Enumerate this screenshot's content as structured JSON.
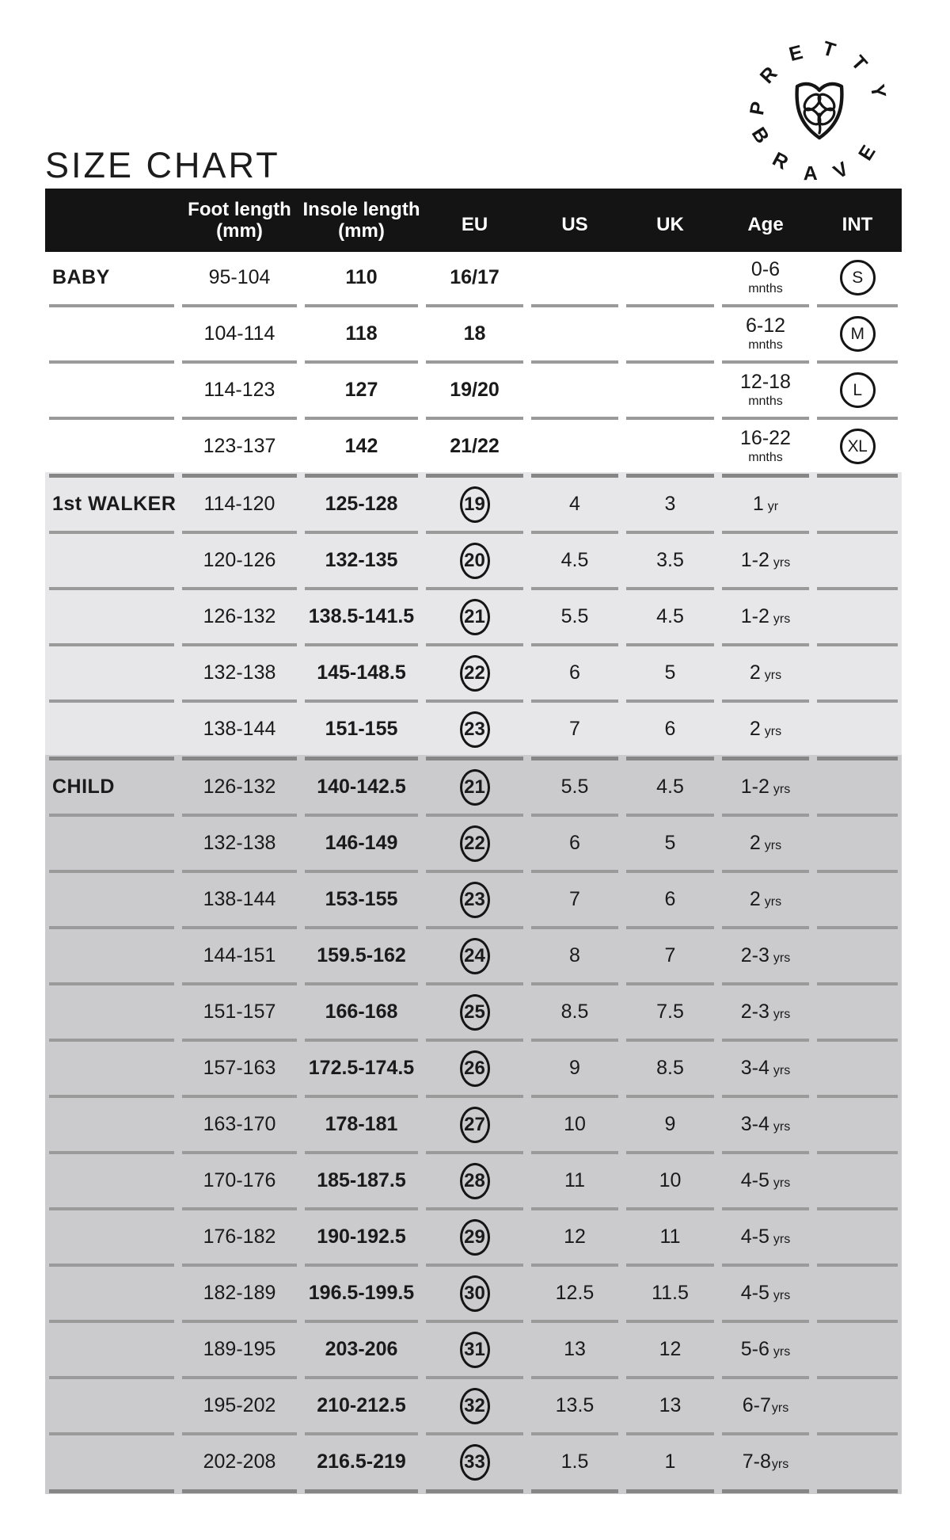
{
  "page": {
    "title": "SIZE CHART"
  },
  "logo": {
    "brand": "Pretty Brave",
    "top_text": "PRETTY",
    "bottom_text": "BRAVE"
  },
  "colors": {
    "header_bg": "#141414",
    "text": "#1a1a1a",
    "baby_bg": "#ffffff",
    "walker_bg": "#e7e7e9",
    "child_bg": "#cbcbcd",
    "row_divider": "#9a9a9a",
    "section_divider": "#868686"
  },
  "table": {
    "headers": [
      {
        "key": "group",
        "label": ""
      },
      {
        "key": "foot",
        "line1": "Foot length",
        "line2": "(mm)"
      },
      {
        "key": "insole",
        "line1": "Insole length",
        "line2": "(mm)"
      },
      {
        "key": "eu",
        "label": "EU"
      },
      {
        "key": "us",
        "label": "US"
      },
      {
        "key": "uk",
        "label": "UK"
      },
      {
        "key": "age",
        "label": "Age"
      },
      {
        "key": "int",
        "label": "INT"
      }
    ],
    "sections": [
      {
        "name": "baby",
        "bg": "#ffffff",
        "eu_circled": false,
        "rows": [
          {
            "label": "BABY",
            "foot": "95-104",
            "insole": "110",
            "eu": "16/17",
            "us": "",
            "uk": "",
            "age": {
              "value": "0-6",
              "unit": "mnths",
              "stacked": true
            },
            "int": "S"
          },
          {
            "foot": "104-114",
            "insole": "118",
            "eu": "18",
            "us": "",
            "uk": "",
            "age": {
              "value": "6-12",
              "unit": "mnths",
              "stacked": true
            },
            "int": "M"
          },
          {
            "foot": "114-123",
            "insole": "127",
            "eu": "19/20",
            "us": "",
            "uk": "",
            "age": {
              "value": "12-18",
              "unit": "mnths",
              "stacked": true
            },
            "int": "L"
          },
          {
            "foot": "123-137",
            "insole": "142",
            "eu": "21/22",
            "us": "",
            "uk": "",
            "age": {
              "value": "16-22",
              "unit": "mnths",
              "stacked": true
            },
            "int": "XL"
          }
        ]
      },
      {
        "name": "first-walker",
        "bg": "#e7e7e9",
        "eu_circled": true,
        "rows": [
          {
            "label": "1st WALKER",
            "foot": "114-120",
            "insole": "125-128",
            "eu": "19",
            "us": "4",
            "uk": "3",
            "age": {
              "value": "1",
              "unit": "yr"
            }
          },
          {
            "foot": "120-126",
            "insole": "132-135",
            "eu": "20",
            "us": "4.5",
            "uk": "3.5",
            "age": {
              "value": "1-2",
              "unit": "yrs"
            }
          },
          {
            "foot": "126-132",
            "insole": "138.5-141.5",
            "eu": "21",
            "us": "5.5",
            "uk": "4.5",
            "age": {
              "value": "1-2",
              "unit": "yrs"
            }
          },
          {
            "foot": "132-138",
            "insole": "145-148.5",
            "eu": "22",
            "us": "6",
            "uk": "5",
            "age": {
              "value": "2",
              "unit": "yrs"
            }
          },
          {
            "foot": "138-144",
            "insole": "151-155",
            "eu": "23",
            "us": "7",
            "uk": "6",
            "age": {
              "value": "2",
              "unit": "yrs"
            }
          }
        ]
      },
      {
        "name": "child",
        "bg": "#cbcbcd",
        "eu_circled": true,
        "rows": [
          {
            "label": "CHILD",
            "foot": "126-132",
            "insole": "140-142.5",
            "eu": "21",
            "us": "5.5",
            "uk": "4.5",
            "age": {
              "value": "1-2",
              "unit": "yrs"
            }
          },
          {
            "foot": "132-138",
            "insole": "146-149",
            "eu": "22",
            "us": "6",
            "uk": "5",
            "age": {
              "value": "2",
              "unit": "yrs"
            }
          },
          {
            "foot": "138-144",
            "insole": "153-155",
            "eu": "23",
            "us": "7",
            "uk": "6",
            "age": {
              "value": "2",
              "unit": "yrs"
            }
          },
          {
            "foot": "144-151",
            "insole": "159.5-162",
            "eu": "24",
            "us": "8",
            "uk": "7",
            "age": {
              "value": "2-3",
              "unit": "yrs"
            }
          },
          {
            "foot": "151-157",
            "insole": "166-168",
            "eu": "25",
            "us": "8.5",
            "uk": "7.5",
            "age": {
              "value": "2-3",
              "unit": "yrs"
            }
          },
          {
            "foot": "157-163",
            "insole": "172.5-174.5",
            "eu": "26",
            "us": "9",
            "uk": "8.5",
            "age": {
              "value": "3-4",
              "unit": "yrs"
            }
          },
          {
            "foot": "163-170",
            "insole": "178-181",
            "eu": "27",
            "us": "10",
            "uk": "9",
            "age": {
              "value": "3-4",
              "unit": "yrs"
            }
          },
          {
            "foot": "170-176",
            "insole": "185-187.5",
            "eu": "28",
            "us": "11",
            "uk": "10",
            "age": {
              "value": "4-5",
              "unit": "yrs"
            }
          },
          {
            "foot": "176-182",
            "insole": "190-192.5",
            "eu": "29",
            "us": "12",
            "uk": "11",
            "age": {
              "value": "4-5",
              "unit": "yrs"
            }
          },
          {
            "foot": "182-189",
            "insole": "196.5-199.5",
            "eu": "30",
            "us": "12.5",
            "uk": "11.5",
            "age": {
              "value": "4-5",
              "unit": "yrs"
            }
          },
          {
            "foot": "189-195",
            "insole": "203-206",
            "eu": "31",
            "us": "13",
            "uk": "12",
            "age": {
              "value": "5-6",
              "unit": "yrs"
            }
          },
          {
            "foot": "195-202",
            "insole": "210-212.5",
            "eu": "32",
            "us": "13.5",
            "uk": "13",
            "age": {
              "value": "6-7",
              "unit": "yrs",
              "tight": true
            }
          },
          {
            "foot": "202-208",
            "insole": "216.5-219",
            "eu": "33",
            "us": "1.5",
            "uk": "1",
            "age": {
              "value": "7-8",
              "unit": "yrs",
              "tight": true
            }
          }
        ]
      }
    ]
  }
}
